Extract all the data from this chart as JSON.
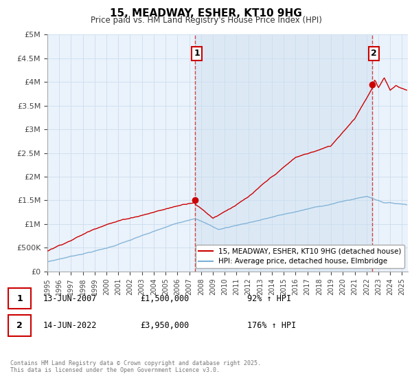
{
  "title": "15, MEADWAY, ESHER, KT10 9HG",
  "subtitle": "Price paid vs. HM Land Registry's House Price Index (HPI)",
  "ylabel_ticks": [
    "£0",
    "£500K",
    "£1M",
    "£1.5M",
    "£2M",
    "£2.5M",
    "£3M",
    "£3.5M",
    "£4M",
    "£4.5M",
    "£5M"
  ],
  "ylim": [
    0,
    5000000
  ],
  "ytick_vals": [
    0,
    500000,
    1000000,
    1500000,
    2000000,
    2500000,
    3000000,
    3500000,
    4000000,
    4500000,
    5000000
  ],
  "xlim_start": 1995.0,
  "xlim_end": 2025.5,
  "sale1_x": 2007.5,
  "sale1_y": 1500000,
  "sale1_label": "1",
  "sale2_x": 2022.45,
  "sale2_y": 3950000,
  "sale2_label": "2",
  "red_color": "#cc0000",
  "blue_color": "#7bafd4",
  "shade_color": "#dce9f5",
  "dashed_color": "#cc4444",
  "annotation_box_color": "#cc0000",
  "legend_line1": "15, MEADWAY, ESHER, KT10 9HG (detached house)",
  "legend_line2": "HPI: Average price, detached house, Elmbridge",
  "table_row1": [
    "1",
    "13-JUN-2007",
    "£1,500,000",
    "92% ↑ HPI"
  ],
  "table_row2": [
    "2",
    "14-JUN-2022",
    "£3,950,000",
    "176% ↑ HPI"
  ],
  "footnote": "Contains HM Land Registry data © Crown copyright and database right 2025.\nThis data is licensed under the Open Government Licence v3.0.",
  "background_color": "#ffffff",
  "grid_color": "#ccddee",
  "chart_bg": "#eaf2fb"
}
